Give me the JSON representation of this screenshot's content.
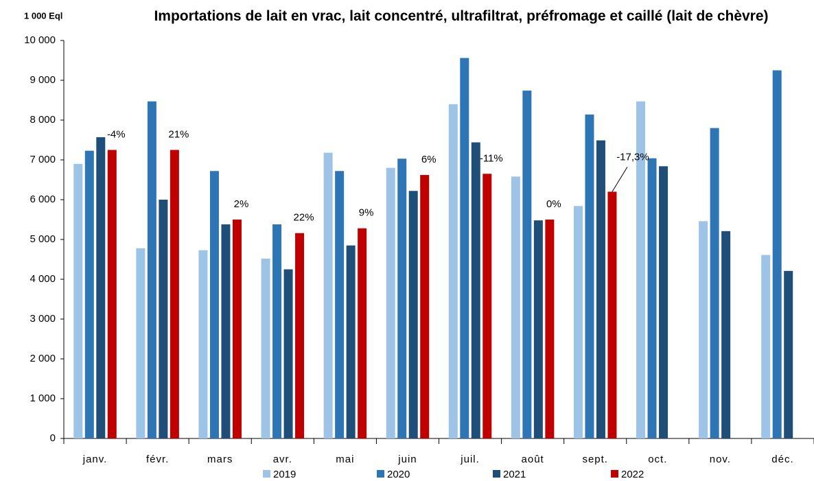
{
  "chart_data": {
    "type": "bar",
    "title": "Importations de lait en vrac, lait concentré, ultrafiltrat, préfromage et caillé (lait de chèvre)",
    "y_label": "1 000 Eql",
    "categories": [
      "janv.",
      "févr.",
      "mars",
      "avr.",
      "mai",
      "juin",
      "juil.",
      "août",
      "sept.",
      "oct.",
      "nov.",
      "déc."
    ],
    "series": [
      {
        "name": "2019",
        "color": "#9dc3e6",
        "values": [
          6900,
          4780,
          4730,
          4520,
          7180,
          6800,
          8400,
          6580,
          5840,
          8470,
          5460,
          4610
        ]
      },
      {
        "name": "2020",
        "color": "#2e75b6",
        "values": [
          7230,
          8470,
          6720,
          5380,
          6720,
          7030,
          9560,
          8740,
          8140,
          7040,
          7800,
          9250
        ]
      },
      {
        "name": "2021",
        "color": "#1f4e79",
        "values": [
          7570,
          6000,
          5380,
          4250,
          4850,
          6220,
          7440,
          5480,
          7490,
          6840,
          5210,
          4210
        ]
      },
      {
        "name": "2022",
        "color": "#c00000",
        "values": [
          7250,
          7250,
          5500,
          5160,
          5280,
          6620,
          6650,
          5500,
          6200,
          null,
          null,
          null
        ]
      }
    ],
    "annotations": [
      {
        "x": "janv.",
        "text": "-4%"
      },
      {
        "x": "févr.",
        "text": "21%"
      },
      {
        "x": "mars",
        "text": "2%"
      },
      {
        "x": "avr.",
        "text": "22%"
      },
      {
        "x": "mai",
        "text": "9%"
      },
      {
        "x": "juin",
        "text": "6%"
      },
      {
        "x": "juil.",
        "text": "-11%"
      },
      {
        "x": "août",
        "text": "0%"
      },
      {
        "x": "sept.",
        "text": "-17,3%"
      }
    ],
    "ylim": [
      0,
      10000
    ],
    "yticks": [
      0,
      {
        "value": 1000,
        "label": "1 000"
      },
      {
        "value": 2000,
        "label": "2 000"
      },
      {
        "value": 3000,
        "label": "3 000"
      },
      {
        "value": 4000,
        "label": "4 000"
      },
      {
        "value": 5000,
        "label": "5 000"
      },
      {
        "value": 6000,
        "label": "6 000"
      },
      {
        "value": 7000,
        "label": "7 000"
      },
      {
        "value": 8000,
        "label": "8 000"
      },
      {
        "value": 9000,
        "label": "9 000"
      },
      {
        "value": 10000,
        "label": "10 000"
      }
    ],
    "grid": false
  }
}
